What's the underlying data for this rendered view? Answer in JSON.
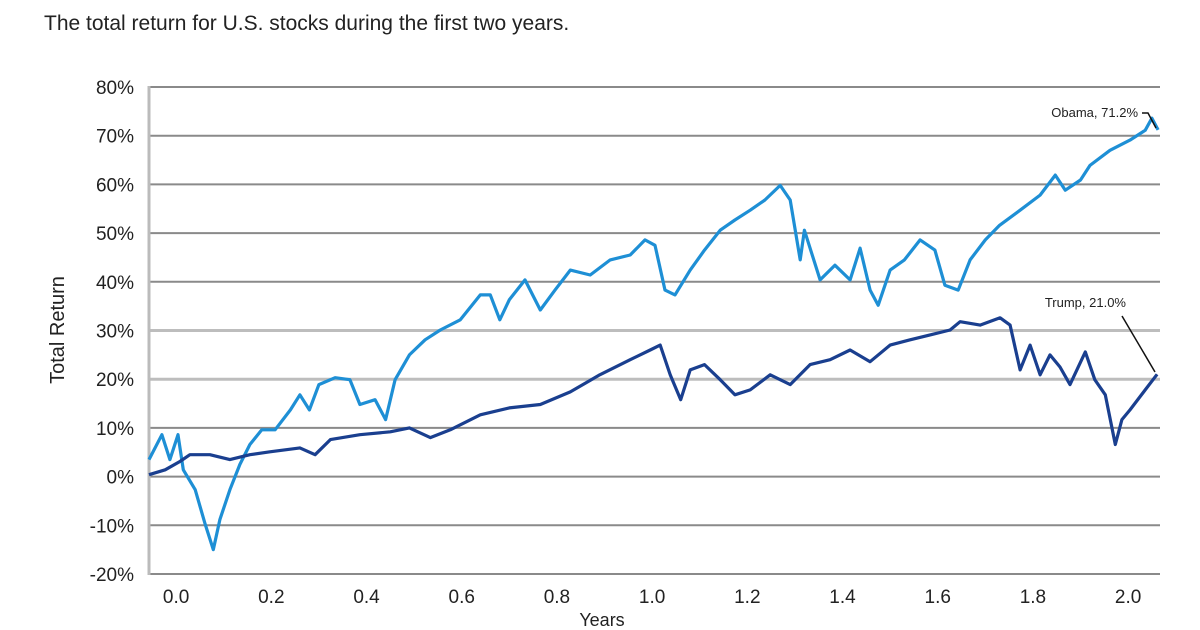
{
  "chart_data": {
    "type": "line",
    "title": "The total return for U.S. stocks during the first two years.",
    "xlabel": "Years",
    "ylabel": "Total Return",
    "xlim": [
      -0.057,
      2.067
    ],
    "ylim": [
      -20,
      80
    ],
    "xticks": [
      "0.0",
      "0.2",
      "0.4",
      "0.6",
      "0.8",
      "1.0",
      "1.2",
      "1.4",
      "1.6",
      "1.8",
      "2.0"
    ],
    "yticks": [
      "-20%",
      "-10%",
      "0%",
      "10%",
      "20%",
      "30%",
      "40%",
      "50%",
      "60%",
      "70%",
      "80%"
    ],
    "grid": "horizontal",
    "series": [
      {
        "name": "Obama",
        "color": "#1e8fd5",
        "annotation": "Obama, 71.2%",
        "x": [
          -0.057,
          -0.03,
          -0.013,
          0.004,
          0.015,
          0.04,
          0.061,
          0.078,
          0.092,
          0.113,
          0.134,
          0.155,
          0.18,
          0.208,
          0.24,
          0.26,
          0.28,
          0.3,
          0.334,
          0.365,
          0.386,
          0.418,
          0.44,
          0.46,
          0.49,
          0.523,
          0.555,
          0.597,
          0.639,
          0.66,
          0.68,
          0.7,
          0.733,
          0.765,
          0.796,
          0.828,
          0.87,
          0.912,
          0.954,
          0.985,
          1.006,
          1.027,
          1.048,
          1.08,
          1.11,
          1.143,
          1.174,
          1.206,
          1.237,
          1.269,
          1.29,
          1.311,
          1.32,
          1.353,
          1.384,
          1.416,
          1.437,
          1.458,
          1.475,
          1.5,
          1.53,
          1.563,
          1.594,
          1.615,
          1.643,
          1.668,
          1.7,
          1.73,
          1.773,
          1.815,
          1.847,
          1.868,
          1.9,
          1.92,
          1.962,
          2.004,
          2.036,
          2.05,
          2.063
        ],
        "y": [
          3.5,
          8.6,
          3.5,
          8.6,
          1.4,
          -2.7,
          -9.8,
          -15,
          -8.8,
          -2.7,
          2.5,
          6.6,
          9.6,
          9.6,
          13.7,
          16.8,
          13.7,
          18.9,
          20.3,
          19.9,
          14.8,
          15.8,
          11.7,
          19.9,
          25,
          28.1,
          30.1,
          32.2,
          37.3,
          37.3,
          32.2,
          36.3,
          40.4,
          34.2,
          38.3,
          42.4,
          41.4,
          44.5,
          45.5,
          48.6,
          47.5,
          38.3,
          37.3,
          42.4,
          46.5,
          50.6,
          52.7,
          54.7,
          56.8,
          59.8,
          56.8,
          44.5,
          50.6,
          40.4,
          43.4,
          40.4,
          46.9,
          38.3,
          35.2,
          42.4,
          44.5,
          48.6,
          46.5,
          39.3,
          38.3,
          44.5,
          48.6,
          51.6,
          54.7,
          57.8,
          61.9,
          58.8,
          60.9,
          63.9,
          67,
          69.1,
          71.1,
          73.6,
          71.2
        ]
      },
      {
        "name": "Trump",
        "color": "#1a3f8f",
        "annotation": "Trump, 21.0%",
        "x": [
          -0.057,
          -0.023,
          0.008,
          0.029,
          0.071,
          0.113,
          0.155,
          0.197,
          0.26,
          0.292,
          0.324,
          0.386,
          0.45,
          0.49,
          0.534,
          0.576,
          0.639,
          0.7,
          0.765,
          0.828,
          0.89,
          0.954,
          0.996,
          1.017,
          1.038,
          1.06,
          1.08,
          1.11,
          1.143,
          1.174,
          1.206,
          1.248,
          1.29,
          1.332,
          1.374,
          1.416,
          1.458,
          1.5,
          1.542,
          1.584,
          1.626,
          1.647,
          1.689,
          1.731,
          1.752,
          1.773,
          1.794,
          1.815,
          1.836,
          1.857,
          1.878,
          1.91,
          1.93,
          1.952,
          1.973,
          1.987,
          2.004,
          2.036,
          2.061
        ],
        "y": [
          0.4,
          1.4,
          3.1,
          4.5,
          4.5,
          3.5,
          4.5,
          5.1,
          5.9,
          4.5,
          7.6,
          8.6,
          9.2,
          10,
          8,
          9.6,
          12.7,
          14.1,
          14.8,
          17.4,
          20.9,
          24,
          26,
          27,
          20.9,
          15.8,
          21.9,
          23,
          19.9,
          16.8,
          17.8,
          20.9,
          18.9,
          23,
          24,
          26,
          23.6,
          27,
          28.1,
          29.1,
          30.1,
          31.8,
          31.1,
          32.6,
          31.1,
          21.9,
          27,
          20.9,
          25,
          22.5,
          18.9,
          25.6,
          19.9,
          16.8,
          6.6,
          11.7,
          13.7,
          17.8,
          21.0
        ]
      }
    ]
  }
}
